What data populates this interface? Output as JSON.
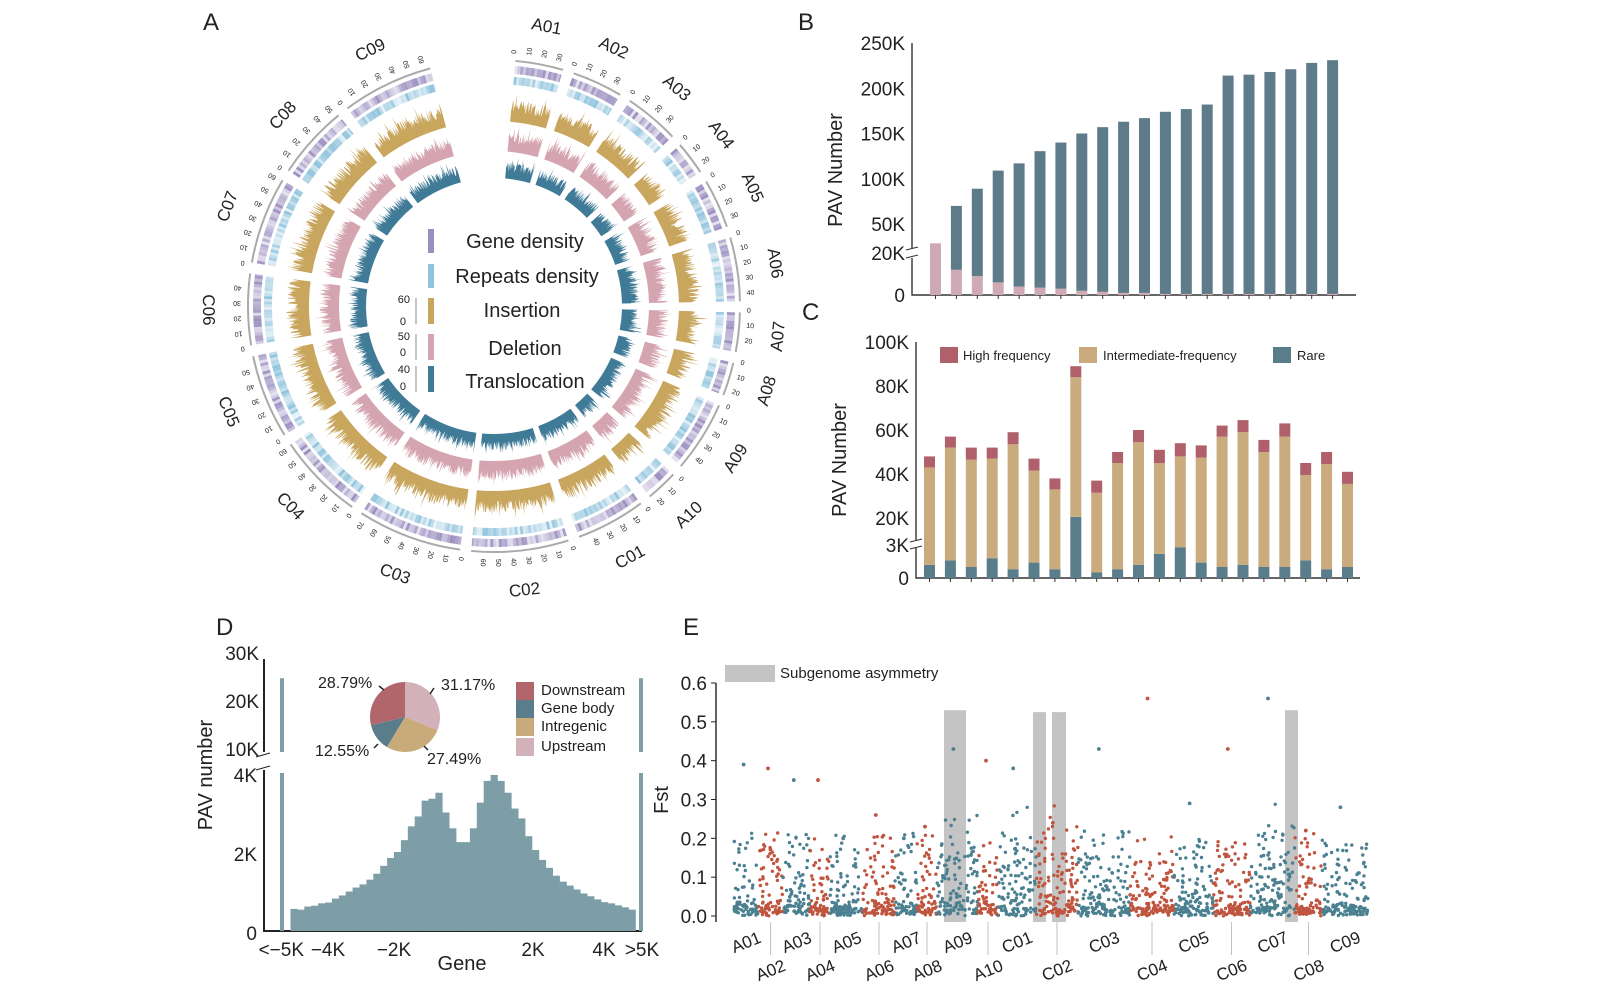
{
  "panels": {
    "a": "A",
    "b": "B",
    "c": "C",
    "d": "D",
    "e": "E"
  },
  "colors": {
    "gene_density": "#9b8fc0",
    "repeats_density": "#8fc3dc",
    "insertion": "#c9a65e",
    "deletion": "#d4a5b0",
    "translocation": "#3f7a96",
    "b_core": "#5e7b8a",
    "b_pink": "#cfaab4",
    "high": "#b0606a",
    "intermediate": "#c9ab7d",
    "rare": "#5a7d8c",
    "hist": "#7d9ea6",
    "downstream": "#b0666b",
    "gene_body": "#5a7d8c",
    "intregenic": "#c9aa7a",
    "upstream": "#d3b1b9",
    "fst_teal": "#4a8090",
    "fst_red": "#c0553f",
    "highlight": "#c4c4c4"
  },
  "chart_data": [
    {
      "panel": "A",
      "type": "circos",
      "chromosomes": [
        {
          "name": "A01",
          "length": 33
        },
        {
          "name": "A02",
          "length": 35
        },
        {
          "name": "A03",
          "length": 38
        },
        {
          "name": "A04",
          "length": 23
        },
        {
          "name": "A05",
          "length": 34
        },
        {
          "name": "A06",
          "length": 44
        },
        {
          "name": "A07",
          "length": 27
        },
        {
          "name": "A08",
          "length": 23
        },
        {
          "name": "A09",
          "length": 49
        },
        {
          "name": "A10",
          "length": 22
        },
        {
          "name": "C01",
          "length": 48
        },
        {
          "name": "C02",
          "length": 67
        },
        {
          "name": "C03",
          "length": 72
        },
        {
          "name": "C04",
          "length": 60
        },
        {
          "name": "C05",
          "length": 58
        },
        {
          "name": "C06",
          "length": 49
        },
        {
          "name": "C07",
          "length": 60
        },
        {
          "name": "C08",
          "length": 51
        },
        {
          "name": "C09",
          "length": 63
        }
      ],
      "tick_step": 10,
      "legend": [
        {
          "label": "Gene density",
          "scale_max": "",
          "scale_min": ""
        },
        {
          "label": "Repeats density",
          "scale_max": "",
          "scale_min": ""
        },
        {
          "label": "Insertion",
          "scale_max": "60",
          "scale_min": "0"
        },
        {
          "label": "Deletion",
          "scale_max": "50",
          "scale_min": "0"
        },
        {
          "label": "Translocation",
          "scale_max": "40",
          "scale_min": "0"
        }
      ]
    },
    {
      "panel": "B",
      "type": "bar",
      "ylabel": "PAV Number",
      "yticks": [
        "0",
        "20K",
        "50K",
        "100K",
        "150K",
        "200K",
        "250K"
      ],
      "y_break": [
        20,
        50
      ],
      "ylim": [
        0,
        250
      ],
      "unit": "K",
      "series": [
        {
          "key": "core",
          "values": [
            0,
            58,
            80,
            103,
            113,
            127,
            137,
            148,
            155.5,
            162,
            166,
            173.5,
            176.5,
            181.5,
            213.5,
            214.5,
            217.5,
            220.5,
            227.5,
            230.5
          ]
        },
        {
          "key": "pink",
          "values": [
            30,
            12,
            9,
            6,
            4,
            3.5,
            3,
            2,
            1.5,
            1,
            1,
            0.5,
            0.5,
            0.5,
            0.5,
            0.5,
            0.5,
            0.5,
            0.5,
            0.5
          ]
        }
      ]
    },
    {
      "panel": "C",
      "type": "stacked-bar",
      "ylabel": "PAV Number",
      "yticks": [
        "0",
        "3K",
        "20K",
        "40K",
        "60K",
        "80K",
        "100K"
      ],
      "ylim": [
        0,
        100
      ],
      "unit": "K",
      "legend": [
        "High frequency",
        "Intermediate-frequency",
        "Rare"
      ],
      "series": [
        {
          "name": "Rare",
          "values": [
            1.2,
            1.6,
            1.0,
            1.8,
            0.8,
            1.4,
            0.8,
            20.5,
            0.5,
            0.8,
            1.2,
            2.2,
            2.8,
            1.4,
            1.0,
            1.2,
            1.0,
            1.0,
            1.6,
            0.8,
            1.0
          ]
        },
        {
          "name": "Intermediate-frequency",
          "values": [
            41.8,
            50.4,
            45.5,
            45.2,
            52.7,
            40.1,
            32.2,
            63.5,
            31.0,
            44.2,
            53.3,
            42.8,
            45.2,
            46.1,
            56.0,
            57.8,
            49.0,
            56.0,
            37.9,
            43.7,
            34.5
          ]
        },
        {
          "name": "High frequency",
          "values": [
            5,
            5,
            5.5,
            5,
            5.5,
            5.5,
            5,
            5,
            5.5,
            5,
            5.5,
            6,
            6,
            5.5,
            5,
            5.5,
            5.5,
            6,
            5.5,
            5.5,
            5.5
          ]
        }
      ]
    },
    {
      "panel": "D",
      "type": "bar",
      "ylabel": "PAV number",
      "xlabel": "Gene",
      "xticks": [
        "<−5K",
        "−4K",
        "−2K",
        "2K",
        "4K",
        ">5K"
      ],
      "yticks_lower": [
        "0",
        "2K",
        "4K"
      ],
      "yticks_upper": [
        "10K",
        "20K",
        "30K"
      ],
      "bin_start_bp": -5000,
      "bin_width_bp": 200,
      "edge_values": {
        "below_minus_5K": 26000,
        "above_5K": 26000
      },
      "values": [
        560,
        540,
        620,
        640,
        700,
        720,
        820,
        900,
        1000,
        1100,
        1180,
        1300,
        1450,
        1650,
        1850,
        2000,
        2300,
        2650,
        2900,
        3300,
        3350,
        3500,
        3000,
        2600,
        2250,
        2250,
        2600,
        3250,
        3800,
        3950,
        3800,
        3500,
        3100,
        2850,
        2400,
        2050,
        1800,
        1600,
        1400,
        1250,
        1150,
        1050,
        950,
        880,
        800,
        730,
        700,
        650,
        600,
        540
      ],
      "pie": [
        {
          "label": "Downstream",
          "percent": 28.79,
          "text": "28.79%"
        },
        {
          "label": "Gene body",
          "percent": 12.55,
          "text": "12.55%"
        },
        {
          "label": "Intregenic",
          "percent": 27.49,
          "text": "27.49%"
        },
        {
          "label": "Upstream",
          "percent": 31.17,
          "text": "31.17%"
        }
      ]
    },
    {
      "panel": "E",
      "type": "scatter",
      "ylabel": "Fst",
      "yticks": [
        "0.0",
        "0.1",
        "0.2",
        "0.3",
        "0.4",
        "0.5",
        "0.6"
      ],
      "ylim": [
        0,
        0.6
      ],
      "legend": "Subgenome asymmetry",
      "chromosomes": [
        "A01",
        "A02",
        "A03",
        "A04",
        "A05",
        "A06",
        "A07",
        "A08",
        "A09",
        "A10",
        "C01",
        "C02",
        "C03",
        "C04",
        "C05",
        "C06",
        "C07",
        "C08",
        "C09"
      ],
      "highlight_regions": [
        {
          "chromosome": "A09",
          "max_fst": 0.53
        },
        {
          "chromosome": "C01",
          "max_fst": 0.525
        },
        {
          "chromosome": "C02",
          "max_fst": 0.525
        },
        {
          "chromosome": "C07",
          "max_fst": 0.53
        }
      ],
      "peak_fst": {
        "A01": 0.39,
        "A02": 0.38,
        "A03": 0.35,
        "A04": 0.35,
        "A05": 0.2,
        "A06": 0.26,
        "A07": 0.2,
        "A08": 0.23,
        "A09": 0.43,
        "A10": 0.4,
        "C01": 0.38,
        "C02": 0.24,
        "C03": 0.43,
        "C04": 0.56,
        "C05": 0.29,
        "C06": 0.43,
        "C07": 0.56,
        "C08": 0.22,
        "C09": 0.28
      }
    }
  ]
}
